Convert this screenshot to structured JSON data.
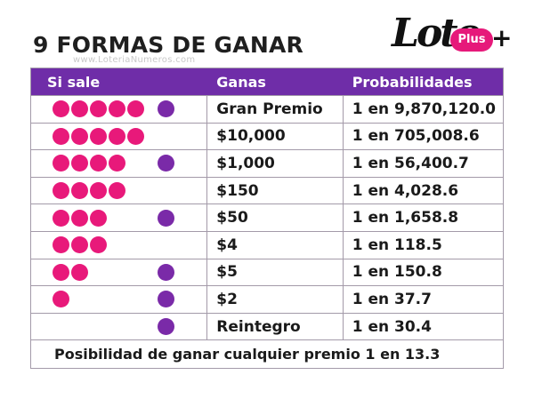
{
  "title": "9 FORMAS DE GANAR",
  "watermark": "www.LoteriaNumeros.com",
  "logo": {
    "text": "Loto",
    "badge": "Plus",
    "suffix": "+",
    "accent": "#e6197a"
  },
  "colors": {
    "header_bg": "#6f2da8",
    "main_ball": "#e8197a",
    "bonus_ball": "#7a2aa8"
  },
  "table": {
    "headers": [
      "Si sale",
      "Ganas",
      "Probabilidades"
    ],
    "rows": [
      {
        "main_balls": 5,
        "bonus_ball": true,
        "prize": "Gran Premio",
        "odds": "1 en 9,870,120.0"
      },
      {
        "main_balls": 5,
        "bonus_ball": false,
        "prize": "$10,000",
        "odds": "1 en 705,008.6"
      },
      {
        "main_balls": 4,
        "bonus_ball": true,
        "prize": "$1,000",
        "odds": "1 en 56,400.7"
      },
      {
        "main_balls": 4,
        "bonus_ball": false,
        "prize": "$150",
        "odds": "1 en 4,028.6"
      },
      {
        "main_balls": 3,
        "bonus_ball": true,
        "prize": "$50",
        "odds": "1 en 1,658.8"
      },
      {
        "main_balls": 3,
        "bonus_ball": false,
        "prize": "$4",
        "odds": "1 en 118.5"
      },
      {
        "main_balls": 2,
        "bonus_ball": true,
        "prize": "$5",
        "odds": "1 en 150.8"
      },
      {
        "main_balls": 1,
        "bonus_ball": true,
        "prize": "$2",
        "odds": "1 en 37.7"
      },
      {
        "main_balls": 0,
        "bonus_ball": true,
        "prize": "Reintegro",
        "odds": "1 en 30.4"
      }
    ],
    "footer": "Posibilidad de ganar cualquier premio 1 en 13.3"
  }
}
